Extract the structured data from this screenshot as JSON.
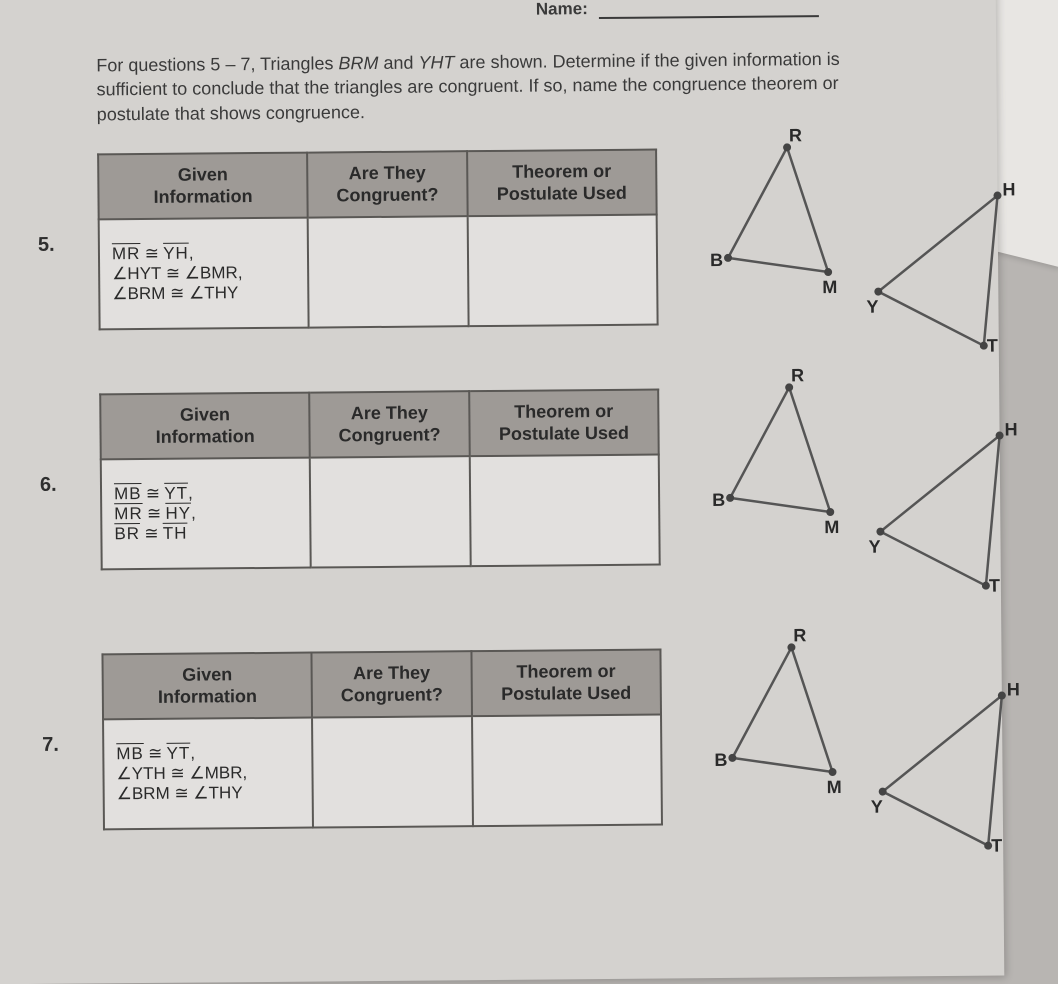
{
  "header": {
    "name_label": "Name:"
  },
  "instructions": {
    "line1_a": "For questions 5 – 7, Triangles ",
    "line1_b": "BRM",
    "line1_c": " and ",
    "line1_d": "YHT",
    "line1_e": " are shown. Determine if the given information is",
    "line2": "sufficient to conclude that the triangles are congruent. If so, name the congruence theorem or",
    "line3": "postulate that shows congruence."
  },
  "table_headers": {
    "given": "Given\nInformation",
    "cong": "Are They\nCongruent?",
    "thm": "Theorem or\nPostulate Used"
  },
  "q5": {
    "num": "5.",
    "given_l1a": "MR",
    "given_l1b": " ≅ ",
    "given_l1c": "YH",
    "given_l1d": ",",
    "given_l2": "∠HYT ≅ ∠BMR,",
    "given_l3": "∠BRM ≅ ∠THY"
  },
  "q6": {
    "num": "6.",
    "given_l1a": "MB",
    "given_l1b": " ≅ ",
    "given_l1c": "YT",
    "given_l1d": ",",
    "given_l2a": "MR",
    "given_l2b": " ≅ ",
    "given_l2c": "HY",
    "given_l2d": ",",
    "given_l3a": "BR",
    "given_l3b": " ≅ ",
    "given_l3c": "TH"
  },
  "q7": {
    "num": "7.",
    "given_l1a": "MB",
    "given_l1b": " ≅ ",
    "given_l1c": "YT",
    "given_l1d": ",",
    "given_l2": "∠YTH ≅ ∠MBR,",
    "given_l3": "∠BRM ≅ ∠THY"
  },
  "tri_labels": {
    "B": "B",
    "R": "R",
    "M": "M",
    "Y": "Y",
    "H": "H",
    "T": "T"
  },
  "colors": {
    "page_bg": "#d4d2cf",
    "body_bg": "#b8b5b2",
    "header_bg": "#9e9a96",
    "border": "#5a5855",
    "text": "#2a2a2a",
    "line": "#555"
  }
}
